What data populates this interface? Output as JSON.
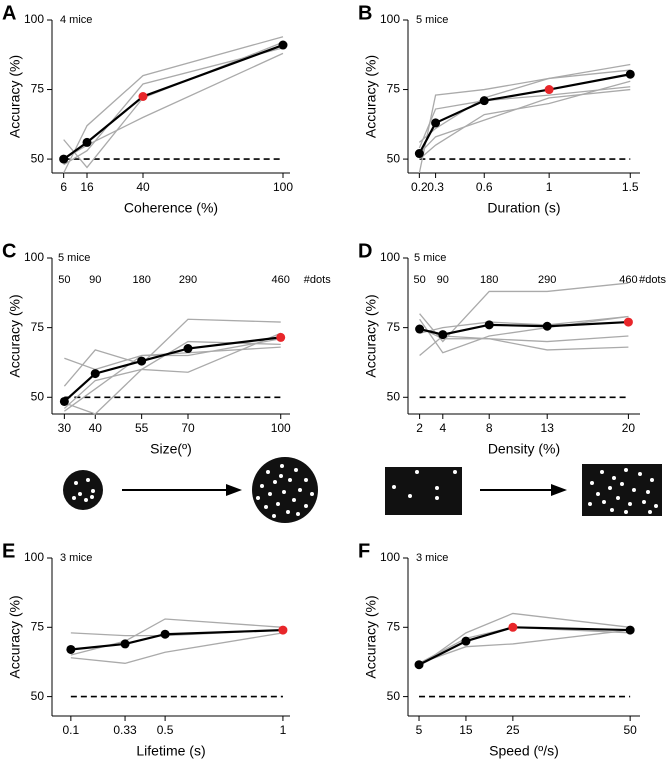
{
  "chart_data": [
    {
      "type": "line",
      "panel": "A",
      "annotation": "4 mice",
      "xlabel": "Coherence (%)",
      "ylabel": "Accuracy (%)",
      "x": [
        6,
        16,
        40,
        100
      ],
      "xlim": [
        1,
        103
      ],
      "xticks": [
        6,
        16,
        40,
        100
      ],
      "ylim": [
        45,
        100
      ],
      "yticks": [
        50,
        75,
        100
      ],
      "reference_line": {
        "value": 50,
        "style": "dashed"
      },
      "series": [
        {
          "color": "#aaaaaa",
          "values": [
            57,
            47,
            72,
            92
          ]
        },
        {
          "color": "#aaaaaa",
          "values": [
            45,
            62,
            80,
            94
          ]
        },
        {
          "color": "#aaaaaa",
          "values": [
            50,
            55,
            65,
            88
          ]
        },
        {
          "color": "#aaaaaa",
          "values": [
            48,
            53,
            77,
            90
          ]
        },
        {
          "color": "#000000",
          "values": [
            50,
            56,
            72.5,
            91
          ],
          "marker_colors": [
            "#000000",
            "#000000",
            "#e8262a",
            "#000000"
          ]
        }
      ]
    },
    {
      "type": "line",
      "panel": "B",
      "annotation": "5 mice",
      "xlabel": "Duration (s)",
      "ylabel": "Accuracy (%)",
      "x": [
        0.2,
        0.3,
        0.6,
        1,
        1.5
      ],
      "xlim": [
        0.13,
        1.56
      ],
      "xticks": [
        0.2,
        0.3,
        0.6,
        1,
        1.5
      ],
      "ylim": [
        45,
        100
      ],
      "yticks": [
        50,
        75,
        100
      ],
      "reference_line": {
        "value": 50,
        "style": "dashed"
      },
      "series": [
        {
          "color": "#aaaaaa",
          "values": [
            45,
            73,
            75,
            79,
            84
          ]
        },
        {
          "color": "#aaaaaa",
          "values": [
            50,
            55,
            66,
            70,
            78
          ]
        },
        {
          "color": "#aaaaaa",
          "values": [
            54,
            68,
            71,
            73,
            76
          ]
        },
        {
          "color": "#aaaaaa",
          "values": [
            56,
            61,
            72,
            79,
            82
          ]
        },
        {
          "color": "#aaaaaa",
          "values": [
            52,
            58,
            64,
            72,
            75
          ]
        },
        {
          "color": "#000000",
          "values": [
            52,
            63,
            71,
            75,
            80.5
          ],
          "marker_colors": [
            "#000000",
            "#000000",
            "#000000",
            "#e8262a",
            "#000000"
          ]
        }
      ]
    },
    {
      "type": "line",
      "panel": "C",
      "annotation": "5 mice",
      "xlabel": "Size(º)",
      "ylabel": "Accuracy (%)",
      "dots_labels": [
        50,
        90,
        180,
        290,
        460
      ],
      "dots_title": "#dots",
      "x": [
        30,
        40,
        55,
        70,
        100
      ],
      "xlim": [
        26,
        103
      ],
      "xticks": [
        30,
        40,
        55,
        70,
        100
      ],
      "ylim": [
        44,
        100
      ],
      "yticks": [
        50,
        75,
        100
      ],
      "reference_line": {
        "value": 50,
        "style": "dashed"
      },
      "series": [
        {
          "color": "#aaaaaa",
          "values": [
            54,
            67,
            62,
            78,
            77
          ]
        },
        {
          "color": "#aaaaaa",
          "values": [
            64,
            60,
            65,
            66,
            68
          ]
        },
        {
          "color": "#aaaaaa",
          "values": [
            45,
            53,
            65,
            65,
            71
          ]
        },
        {
          "color": "#aaaaaa",
          "values": [
            46,
            56,
            60,
            59,
            73
          ]
        },
        {
          "color": "#aaaaaa",
          "values": [
            48,
            44,
            60,
            70,
            69
          ]
        },
        {
          "color": "#000000",
          "values": [
            48.5,
            58.5,
            63,
            67.5,
            71.5
          ],
          "marker_colors": [
            "#000000",
            "#000000",
            "#000000",
            "#000000",
            "#e8262a"
          ]
        }
      ]
    },
    {
      "type": "line",
      "panel": "D",
      "annotation": "5 mice",
      "xlabel": "Density (%)",
      "ylabel": "Accuracy (%)",
      "dots_labels": [
        50,
        90,
        180,
        290,
        460
      ],
      "dots_title": "#dots",
      "x": [
        2,
        4,
        8,
        13,
        20
      ],
      "xlim": [
        1,
        21
      ],
      "xticks": [
        2,
        4,
        8,
        13,
        20
      ],
      "ylim": [
        44,
        100
      ],
      "yticks": [
        50,
        75,
        100
      ],
      "reference_line": {
        "value": 50,
        "style": "dashed"
      },
      "series": [
        {
          "color": "#aaaaaa",
          "values": [
            80,
            70,
            88,
            88,
            91
          ]
        },
        {
          "color": "#aaaaaa",
          "values": [
            65,
            72,
            71,
            67,
            68
          ]
        },
        {
          "color": "#aaaaaa",
          "values": [
            78,
            66,
            72,
            75,
            79
          ]
        },
        {
          "color": "#aaaaaa",
          "values": [
            73,
            75,
            77,
            76,
            79
          ]
        },
        {
          "color": "#aaaaaa",
          "values": [
            75,
            71,
            71,
            70,
            72
          ]
        },
        {
          "color": "#000000",
          "values": [
            74.5,
            72.5,
            76,
            75.5,
            77
          ],
          "marker_colors": [
            "#000000",
            "#000000",
            "#000000",
            "#000000",
            "#e8262a"
          ]
        }
      ]
    },
    {
      "type": "line",
      "panel": "E",
      "annotation": "3 mice",
      "xlabel": "Lifetime (s)",
      "ylabel": "Accuracy (%)",
      "x": [
        0.1,
        0.33,
        0.5,
        1
      ],
      "xlim": [
        0.02,
        1.03
      ],
      "xticks": [
        0.1,
        0.33,
        0.5,
        1
      ],
      "ylim": [
        43,
        100
      ],
      "yticks": [
        50,
        75,
        100
      ],
      "reference_line": {
        "value": 50,
        "style": "dashed"
      },
      "series": [
        {
          "color": "#aaaaaa",
          "values": [
            73,
            72,
            72,
            74
          ]
        },
        {
          "color": "#aaaaaa",
          "values": [
            64,
            62,
            66,
            73
          ]
        },
        {
          "color": "#aaaaaa",
          "values": [
            65,
            70,
            78,
            75
          ]
        },
        {
          "color": "#000000",
          "values": [
            67,
            69,
            72.5,
            74
          ],
          "marker_colors": [
            "#000000",
            "#000000",
            "#000000",
            "#e8262a"
          ]
        }
      ]
    },
    {
      "type": "line",
      "panel": "F",
      "annotation": "3 mice",
      "xlabel": "Speed (º/s)",
      "ylabel": "Accuracy (%)",
      "x": [
        5,
        15,
        25,
        50
      ],
      "xlim": [
        2.65,
        52.1
      ],
      "xticks": [
        5,
        15,
        25,
        50
      ],
      "ylim": [
        43,
        100
      ],
      "yticks": [
        50,
        75,
        100
      ],
      "reference_line": {
        "value": 50,
        "style": "dashed"
      },
      "series": [
        {
          "color": "#aaaaaa",
          "values": [
            61,
            73,
            80,
            75
          ]
        },
        {
          "color": "#aaaaaa",
          "values": [
            62,
            68,
            69,
            74
          ]
        },
        {
          "color": "#aaaaaa",
          "values": [
            62,
            71,
            75,
            73
          ]
        },
        {
          "color": "#000000",
          "values": [
            61.5,
            70,
            75,
            74
          ],
          "marker_colors": [
            "#000000",
            "#000000",
            "#e8262a",
            "#000000"
          ]
        }
      ]
    }
  ]
}
